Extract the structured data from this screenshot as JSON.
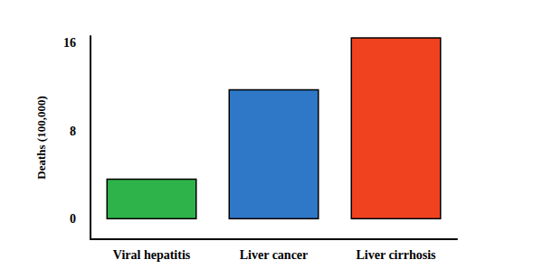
{
  "chart_data": {
    "type": "bar",
    "y_label": "Deaths (100,000)",
    "categories": [
      "Viral hepatitis",
      "Liver cancer",
      "Liver cirrhosis"
    ],
    "values": [
      3.7,
      11.8,
      16.5
    ],
    "colors": [
      "#2db34a",
      "#2f78c8",
      "#f0421e"
    ],
    "ylim": [
      -1.8,
      16.6
    ],
    "yticks": [
      0,
      8,
      16
    ],
    "grid": false
  }
}
